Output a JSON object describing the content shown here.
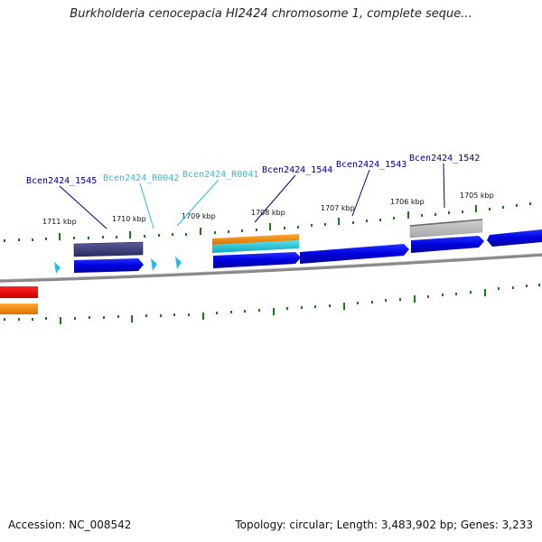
{
  "title": "Burkholderia cenocepacia HI2424 chromosome 1, complete seque...",
  "footer": {
    "accession": "Accession: NC_008542",
    "topology": "Topology: circular; Length: 3,483,902 bp; Genes: 3,233"
  },
  "ticks": [
    "1711 kbp",
    "1710 kbp",
    "1709 kbp",
    "1708 kbp",
    "1707 kbp",
    "1706 kbp",
    "1705 kbp"
  ],
  "labels": [
    {
      "name": "Bcen2424_1545",
      "color": "#00008b"
    },
    {
      "name": "Bcen2424_R0042",
      "color": "#33bbdd"
    },
    {
      "name": "Bcen2424_R0041",
      "color": "#33bbdd"
    },
    {
      "name": "Bcen2424_1544",
      "color": "#00008b"
    },
    {
      "name": "Bcen2424_1543",
      "color": "#00008b"
    },
    {
      "name": "Bcen2424_1542",
      "color": "#00008b"
    }
  ],
  "colors": {
    "gene": "#0000dd",
    "trna": "#22bbee",
    "cds_dark": "#3a3a7a",
    "orange": "#ff8c00",
    "cyan": "#22ccdd",
    "gray": "#bbbbbb",
    "red": "#ee0000",
    "tick": "#1a7a1a",
    "backbone": "#8a8a8a"
  }
}
